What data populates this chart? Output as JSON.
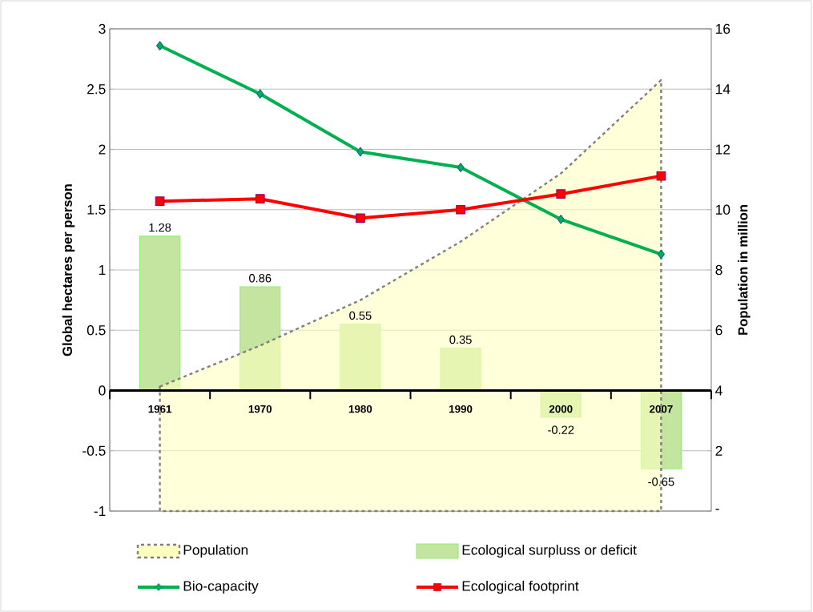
{
  "chart_data": {
    "type": "line",
    "categories": [
      "1961",
      "1970",
      "1980",
      "1990",
      "2000",
      "2007"
    ],
    "ylabel": "Global hectares per person",
    "y2label": "Population in million",
    "ylim": [
      -1,
      3
    ],
    "yticks": [
      -1,
      -0.5,
      0,
      0.5,
      1,
      1.5,
      2,
      2.5,
      3
    ],
    "y2lim": [
      0,
      16
    ],
    "y2ticks": [
      {
        "value": 0,
        "label": "-"
      },
      2,
      4,
      6,
      8,
      10,
      12,
      14,
      16
    ],
    "grid": true,
    "legend": "bottom",
    "series": [
      {
        "name": "Population",
        "type": "area",
        "axis": "y2",
        "color": "#ffffc0",
        "line_style": "dashed",
        "values": [
          4.13,
          5.49,
          7.0,
          8.94,
          11.2,
          14.3
        ]
      },
      {
        "name": "Ecological surpluss or deficit",
        "type": "bar",
        "color": "#c4e59f",
        "values": [
          1.28,
          0.86,
          0.55,
          0.35,
          -0.22,
          -0.65
        ],
        "value_labels": [
          "1.28",
          "0.86",
          "0.55",
          "0.35",
          "-0.22",
          "-0.65"
        ]
      },
      {
        "name": "Bio-capacity",
        "color": "#00b050",
        "marker": "diamond",
        "values": [
          2.86,
          2.46,
          1.98,
          1.85,
          1.42,
          1.13
        ]
      },
      {
        "name": "Ecological footprint",
        "color": "#ff0000",
        "marker": "square",
        "values": [
          1.57,
          1.59,
          1.43,
          1.5,
          1.63,
          1.78
        ]
      }
    ]
  }
}
